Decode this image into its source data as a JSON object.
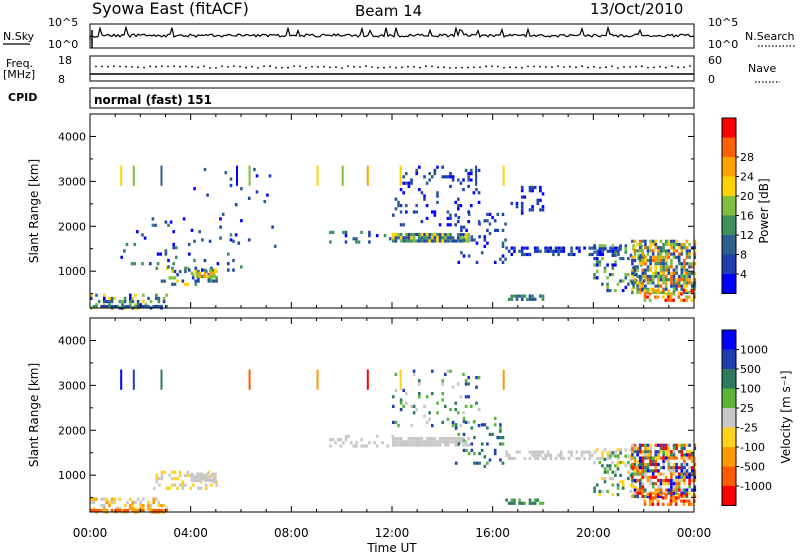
{
  "header": {
    "site": "Syowa East (fitACF)",
    "beam": "Beam 14",
    "date": "13/Oct/2010"
  },
  "meta_panels": {
    "nsky_label": "N.Sky",
    "nsearch_label": "N.Search",
    "ticks_top_left": [
      "10^5",
      "10^0"
    ],
    "ticks_top_right": [
      "10^5",
      "10^0"
    ],
    "freq_label": "Freq.",
    "freq_unit": "[MHz]",
    "freq_ticks": [
      "18",
      "8"
    ],
    "nave_label": "Nave",
    "nave_ticks": [
      "60",
      "0"
    ],
    "cpid_label": "CPID",
    "cpid_text": "normal (fast) 151"
  },
  "colors": {
    "power": [
      "#0000ff",
      "#1e3fb0",
      "#2e5e8c",
      "#3f8f5a",
      "#7fbf3f",
      "#ffd200",
      "#ffa200",
      "#ff6000",
      "#ff0000"
    ],
    "velocity": [
      "#ff0000",
      "#ff5a00",
      "#ff9a00",
      "#ffd21e",
      "#c8c8c8",
      "#5ab43c",
      "#2e7a5e",
      "#1e3fb0",
      "#0000ff"
    ]
  },
  "chart_data": [
    {
      "type": "heatmap",
      "name": "power",
      "ylabel": "Slant Range [km]",
      "xticklabels": [
        "00:00",
        "04:00",
        "08:00",
        "12:00",
        "16:00",
        "20:00",
        "00:00"
      ],
      "yticklabels": [
        "1000",
        "2000",
        "3000",
        "4000"
      ],
      "xlim": [
        0,
        24
      ],
      "ylim": [
        180,
        4500
      ],
      "colorbar_label": "Power [dB]",
      "colorbar_ticks": [
        "4",
        "8",
        "12",
        "16",
        "20",
        "24",
        "28"
      ],
      "blocks": [
        {
          "t": [
            0.0,
            3.0
          ],
          "r": [
            200,
            500
          ],
          "lvl": [
            0,
            5
          ],
          "d": 0.35
        },
        {
          "t": [
            0.0,
            3.0
          ],
          "r": [
            180,
            250
          ],
          "lvl": [
            1,
            3
          ],
          "d": 0.8
        },
        {
          "t": [
            2.5,
            5.0
          ],
          "r": [
            700,
            1100
          ],
          "lvl": [
            1,
            5
          ],
          "d": 0.35
        },
        {
          "t": [
            4.0,
            5.0
          ],
          "r": [
            880,
            1060
          ],
          "lvl": [
            3,
            6
          ],
          "d": 0.75
        },
        {
          "t": [
            1.0,
            6.0
          ],
          "r": [
            1000,
            2200
          ],
          "lvl": [
            0,
            3
          ],
          "d": 0.04
        },
        {
          "t": [
            4.0,
            7.5
          ],
          "r": [
            1500,
            3300
          ],
          "lvl": [
            0,
            2
          ],
          "d": 0.03
        },
        {
          "t": [
            9.5,
            12.0
          ],
          "r": [
            1650,
            1900
          ],
          "lvl": [
            0,
            3
          ],
          "d": 0.25
        },
        {
          "t": [
            12.0,
            15.0
          ],
          "r": [
            1650,
            1850
          ],
          "lvl": [
            1,
            5
          ],
          "d": 0.85
        },
        {
          "t": [
            12.0,
            15.5
          ],
          "r": [
            2000,
            3350
          ],
          "lvl": [
            0,
            2
          ],
          "d": 0.12
        },
        {
          "t": [
            14.5,
            16.5
          ],
          "r": [
            1200,
            2300
          ],
          "lvl": [
            0,
            2
          ],
          "d": 0.15
        },
        {
          "t": [
            16.5,
            21.0
          ],
          "r": [
            1400,
            1550
          ],
          "lvl": [
            0,
            2
          ],
          "d": 0.5
        },
        {
          "t": [
            16.5,
            18.0
          ],
          "r": [
            350,
            480
          ],
          "lvl": [
            1,
            3
          ],
          "d": 0.7
        },
        {
          "t": [
            16.5,
            18.0
          ],
          "r": [
            2300,
            2900
          ],
          "lvl": [
            0,
            1
          ],
          "d": 0.2
        },
        {
          "t": [
            20.0,
            22.0
          ],
          "r": [
            600,
            1600
          ],
          "lvl": [
            0,
            4
          ],
          "d": 0.3
        },
        {
          "t": [
            21.5,
            24.0
          ],
          "r": [
            500,
            1700
          ],
          "lvl": [
            1,
            7
          ],
          "d": 0.7
        },
        {
          "t": [
            22.0,
            24.0
          ],
          "r": [
            350,
            600
          ],
          "lvl": [
            4,
            8
          ],
          "d": 0.55
        }
      ],
      "spikes": [
        {
          "t": 1.2,
          "r": [
            2900,
            3350
          ],
          "lvl": 5
        },
        {
          "t": 1.7,
          "r": [
            2900,
            3350
          ],
          "lvl": 4
        },
        {
          "t": 2.8,
          "r": [
            2900,
            3350
          ],
          "lvl": 2
        },
        {
          "t": 5.8,
          "r": [
            2900,
            3350
          ],
          "lvl": 0
        },
        {
          "t": 6.3,
          "r": [
            2900,
            3350
          ],
          "lvl": 4
        },
        {
          "t": 9.0,
          "r": [
            2900,
            3350
          ],
          "lvl": 5
        },
        {
          "t": 10.0,
          "r": [
            2900,
            3350
          ],
          "lvl": 4
        },
        {
          "t": 11.0,
          "r": [
            2900,
            3350
          ],
          "lvl": 6
        },
        {
          "t": 12.3,
          "r": [
            2900,
            3350
          ],
          "lvl": 5
        },
        {
          "t": 15.3,
          "r": [
            2900,
            3350
          ],
          "lvl": 1
        },
        {
          "t": 16.4,
          "r": [
            2900,
            3350
          ],
          "lvl": 5
        }
      ]
    },
    {
      "type": "heatmap",
      "name": "velocity",
      "xlabel": "Time UT",
      "ylabel": "Slant Range [km]",
      "xticklabels": [
        "00:00",
        "04:00",
        "08:00",
        "12:00",
        "16:00",
        "20:00",
        "00:00"
      ],
      "yticklabels": [
        "1000",
        "2000",
        "3000",
        "4000"
      ],
      "xlim": [
        0,
        24
      ],
      "ylim": [
        180,
        4500
      ],
      "colorbar_label": "Velocity [m s⁻¹]",
      "colorbar_ticks": [
        "-1000",
        "-500",
        "-100",
        "-25",
        "25",
        "100",
        "500",
        "1000"
      ],
      "blocks": [
        {
          "t": [
            0.0,
            3.0
          ],
          "r": [
            200,
            500
          ],
          "lvl": [
            2,
            4
          ],
          "d": 0.45
        },
        {
          "t": [
            0.0,
            3.0
          ],
          "r": [
            180,
            250
          ],
          "lvl": [
            1,
            2
          ],
          "d": 0.8
        },
        {
          "t": [
            2.5,
            5.0
          ],
          "r": [
            700,
            1100
          ],
          "lvl": [
            3,
            4
          ],
          "d": 0.35
        },
        {
          "t": [
            4.0,
            5.0
          ],
          "r": [
            880,
            1060
          ],
          "lvl": [
            4,
            4
          ],
          "d": 0.75
        },
        {
          "t": [
            9.5,
            12.0
          ],
          "r": [
            1650,
            1900
          ],
          "lvl": [
            4,
            4
          ],
          "d": 0.3
        },
        {
          "t": [
            12.0,
            15.0
          ],
          "r": [
            1650,
            1850
          ],
          "lvl": [
            4,
            4
          ],
          "d": 0.85
        },
        {
          "t": [
            12.0,
            15.5
          ],
          "r": [
            2000,
            3350
          ],
          "lvl": [
            4,
            7
          ],
          "d": 0.12
        },
        {
          "t": [
            14.5,
            16.5
          ],
          "r": [
            1200,
            2300
          ],
          "lvl": [
            5,
            7
          ],
          "d": 0.12
        },
        {
          "t": [
            16.5,
            21.0
          ],
          "r": [
            1400,
            1550
          ],
          "lvl": [
            4,
            4
          ],
          "d": 0.5
        },
        {
          "t": [
            16.5,
            18.0
          ],
          "r": [
            350,
            480
          ],
          "lvl": [
            5,
            6
          ],
          "d": 0.7
        },
        {
          "t": [
            20.0,
            22.0
          ],
          "r": [
            600,
            1600
          ],
          "lvl": [
            3,
            6
          ],
          "d": 0.3
        },
        {
          "t": [
            21.5,
            24.0
          ],
          "r": [
            500,
            1700
          ],
          "lvl": [
            0,
            8
          ],
          "d": 0.7
        },
        {
          "t": [
            22.0,
            24.0
          ],
          "r": [
            350,
            600
          ],
          "lvl": [
            0,
            2
          ],
          "d": 0.55
        }
      ],
      "spikes": [
        {
          "t": 1.2,
          "r": [
            2900,
            3350
          ],
          "lvl": 8
        },
        {
          "t": 1.7,
          "r": [
            2900,
            3350
          ],
          "lvl": 7
        },
        {
          "t": 2.8,
          "r": [
            2900,
            3350
          ],
          "lvl": 6
        },
        {
          "t": 6.3,
          "r": [
            2900,
            3350
          ],
          "lvl": 1
        },
        {
          "t": 9.0,
          "r": [
            2900,
            3350
          ],
          "lvl": 2
        },
        {
          "t": 11.0,
          "r": [
            2900,
            3350
          ],
          "lvl": 0
        },
        {
          "t": 12.3,
          "r": [
            2900,
            3350
          ],
          "lvl": 3
        },
        {
          "t": 16.4,
          "r": [
            2900,
            3350
          ],
          "lvl": 2
        }
      ]
    }
  ]
}
